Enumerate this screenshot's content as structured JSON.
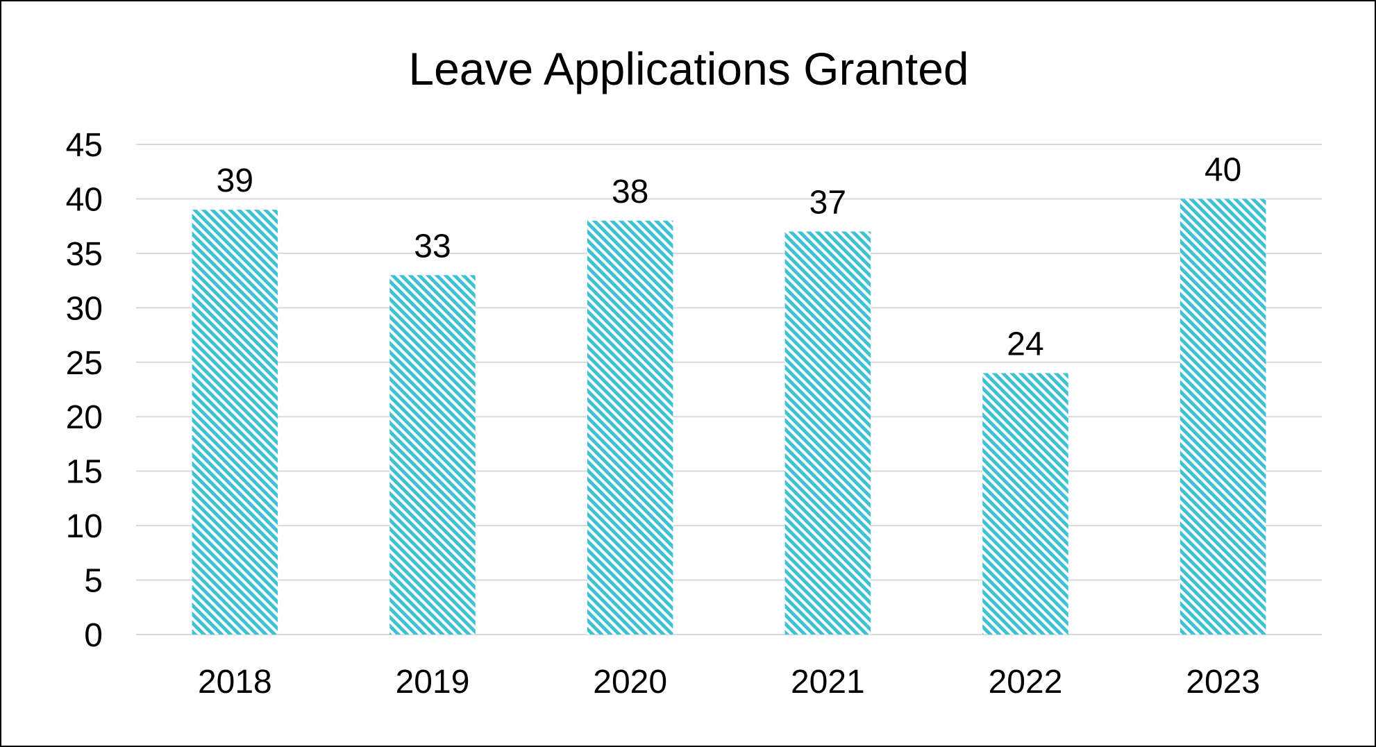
{
  "chart_data": {
    "type": "bar",
    "title": "Leave Applications Granted",
    "xlabel": "",
    "ylabel": "",
    "categories": [
      "2018",
      "2019",
      "2020",
      "2021",
      "2022",
      "2023"
    ],
    "values": [
      39,
      33,
      38,
      37,
      24,
      40
    ],
    "data_labels": [
      "39",
      "33",
      "38",
      "37",
      "24",
      "40"
    ],
    "ylim": [
      0,
      45
    ],
    "yticks": [
      0,
      5,
      10,
      15,
      20,
      25,
      30,
      35,
      40,
      45
    ],
    "ytick_labels": [
      "0",
      "5",
      "10",
      "15",
      "20",
      "25",
      "30",
      "35",
      "40",
      "45"
    ],
    "grid": true,
    "legend": "none",
    "bar_fill": "diagonal-stripe",
    "bar_color": "#3ec1d3",
    "grid_color": "#d9d9d9"
  }
}
